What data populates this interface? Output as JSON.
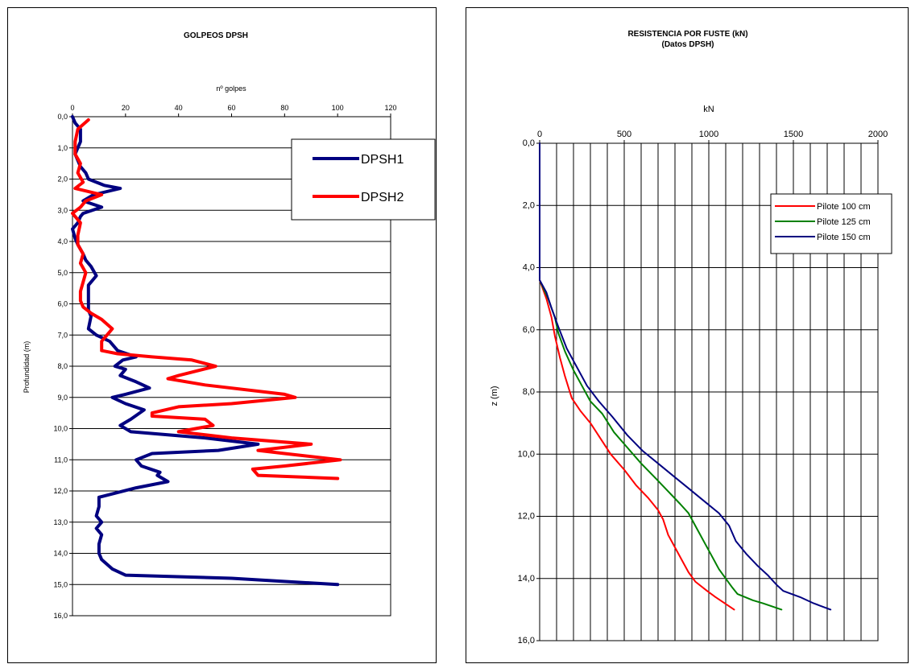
{
  "chart_data": [
    {
      "type": "line",
      "title": "GOLPEOS DPSH",
      "xlabel": "nº golpes",
      "ylabel": "Profundidad (m)",
      "xlim": [
        0,
        120
      ],
      "ylim": [
        0,
        16
      ],
      "y_inverted": true,
      "x_axis_position": "top",
      "grid": "horizontal",
      "legend": "top-right",
      "x_ticks": [
        "0",
        "20",
        "40",
        "60",
        "80",
        "100",
        "120"
      ],
      "y_ticks": [
        "0,0",
        "1,0",
        "2,0",
        "3,0",
        "4,0",
        "5,0",
        "6,0",
        "7,0",
        "8,0",
        "9,0",
        "10,0",
        "11,0",
        "12,0",
        "13,0",
        "14,0",
        "15,0",
        "16,0"
      ],
      "series": [
        {
          "name": "DPSH1",
          "color": "#000080",
          "points": [
            [
              0,
              0
            ],
            [
              1,
              0.2
            ],
            [
              3,
              0.4
            ],
            [
              3,
              0.8
            ],
            [
              1,
              1.2
            ],
            [
              3,
              1.6
            ],
            [
              5,
              1.8
            ],
            [
              6,
              2.0
            ],
            [
              12,
              2.2
            ],
            [
              18,
              2.3
            ],
            [
              8,
              2.5
            ],
            [
              4,
              2.7
            ],
            [
              11,
              2.9
            ],
            [
              4,
              3.1
            ],
            [
              3,
              3.2
            ],
            [
              2,
              3.4
            ],
            [
              0,
              3.6
            ],
            [
              1,
              3.9
            ],
            [
              2,
              4.1
            ],
            [
              4,
              4.4
            ],
            [
              5,
              4.6
            ],
            [
              7,
              4.8
            ],
            [
              9,
              5.1
            ],
            [
              6,
              5.4
            ],
            [
              6,
              5.8
            ],
            [
              6,
              6.2
            ],
            [
              7,
              6.4
            ],
            [
              6,
              6.8
            ],
            [
              9,
              7.0
            ],
            [
              14,
              7.2
            ],
            [
              17,
              7.5
            ],
            [
              24,
              7.7
            ],
            [
              19,
              7.8
            ],
            [
              16,
              8.0
            ],
            [
              20,
              8.1
            ],
            [
              18,
              8.3
            ],
            [
              24,
              8.5
            ],
            [
              29,
              8.7
            ],
            [
              20,
              8.9
            ],
            [
              15,
              9.0
            ],
            [
              20,
              9.2
            ],
            [
              27,
              9.4
            ],
            [
              22,
              9.7
            ],
            [
              18,
              9.9
            ],
            [
              22,
              10.1
            ],
            [
              50,
              10.3
            ],
            [
              70,
              10.5
            ],
            [
              55,
              10.7
            ],
            [
              30,
              10.8
            ],
            [
              24,
              11.0
            ],
            [
              26,
              11.2
            ],
            [
              33,
              11.4
            ],
            [
              32,
              11.5
            ],
            [
              36,
              11.7
            ],
            [
              24,
              11.9
            ],
            [
              10,
              12.2
            ],
            [
              10,
              12.5
            ],
            [
              9,
              12.8
            ],
            [
              11,
              13.0
            ],
            [
              9,
              13.2
            ],
            [
              11,
              13.4
            ],
            [
              10,
              13.7
            ],
            [
              10,
              14.0
            ],
            [
              11,
              14.2
            ],
            [
              15,
              14.5
            ],
            [
              20,
              14.7
            ],
            [
              60,
              14.8
            ],
            [
              100,
              15.0
            ]
          ]
        },
        {
          "name": "DPSH2",
          "color": "#ff0000",
          "points": [
            [
              6,
              0.1
            ],
            [
              2,
              0.4
            ],
            [
              1,
              0.8
            ],
            [
              1,
              1.2
            ],
            [
              3,
              1.5
            ],
            [
              2,
              1.8
            ],
            [
              4,
              2.1
            ],
            [
              1,
              2.3
            ],
            [
              11,
              2.5
            ],
            [
              5,
              2.7
            ],
            [
              3,
              2.9
            ],
            [
              0,
              3.1
            ],
            [
              3,
              3.4
            ],
            [
              2,
              3.8
            ],
            [
              2,
              4.1
            ],
            [
              4,
              4.4
            ],
            [
              3,
              4.7
            ],
            [
              5,
              5.0
            ],
            [
              4,
              5.3
            ],
            [
              3,
              5.6
            ],
            [
              3,
              5.9
            ],
            [
              4,
              6.1
            ],
            [
              7,
              6.3
            ],
            [
              11,
              6.5
            ],
            [
              15,
              6.8
            ],
            [
              13,
              7.0
            ],
            [
              11,
              7.2
            ],
            [
              11,
              7.5
            ],
            [
              17,
              7.6
            ],
            [
              30,
              7.7
            ],
            [
              45,
              7.8
            ],
            [
              54,
              8.0
            ],
            [
              40,
              8.3
            ],
            [
              36,
              8.4
            ],
            [
              50,
              8.6
            ],
            [
              80,
              8.9
            ],
            [
              84,
              9.0
            ],
            [
              60,
              9.2
            ],
            [
              40,
              9.3
            ],
            [
              30,
              9.5
            ],
            [
              30,
              9.6
            ],
            [
              50,
              9.7
            ],
            [
              53,
              9.9
            ],
            [
              40,
              10.1
            ],
            [
              60,
              10.3
            ],
            [
              90,
              10.5
            ],
            [
              70,
              10.7
            ],
            [
              80,
              10.8
            ],
            [
              101,
              11.0
            ],
            [
              80,
              11.2
            ],
            [
              68,
              11.3
            ],
            [
              70,
              11.5
            ],
            [
              100,
              11.6
            ]
          ]
        }
      ]
    },
    {
      "type": "line",
      "title": "RESISTENCIA POR FUSTE (kN)",
      "subtitle": "(Datos DPSH)",
      "xlabel": "kN",
      "ylabel": "z (m)",
      "xlim": [
        0,
        2000
      ],
      "ylim": [
        0,
        16
      ],
      "y_inverted": true,
      "x_axis_position": "top",
      "grid": "both",
      "legend": "top-right",
      "x_ticks": [
        "0",
        "500",
        "1000",
        "1500",
        "2000"
      ],
      "y_ticks": [
        "0,0",
        "2,0",
        "4,0",
        "6,0",
        "8,0",
        "10,0",
        "12,0",
        "14,0",
        "16,0"
      ],
      "series": [
        {
          "name": "Pilote 100 cm",
          "color": "#ff0000",
          "points": [
            [
              0,
              0
            ],
            [
              0,
              4.4
            ],
            [
              40,
              5.0
            ],
            [
              70,
              5.6
            ],
            [
              90,
              6.2
            ],
            [
              120,
              6.9
            ],
            [
              150,
              7.5
            ],
            [
              190,
              8.2
            ],
            [
              240,
              8.6
            ],
            [
              300,
              9.0
            ],
            [
              360,
              9.5
            ],
            [
              420,
              10.0
            ],
            [
              500,
              10.5
            ],
            [
              570,
              11.0
            ],
            [
              640,
              11.4
            ],
            [
              700,
              11.8
            ],
            [
              730,
              12.1
            ],
            [
              760,
              12.6
            ],
            [
              800,
              13.0
            ],
            [
              840,
              13.4
            ],
            [
              880,
              13.8
            ],
            [
              920,
              14.1
            ],
            [
              990,
              14.4
            ],
            [
              1040,
              14.6
            ],
            [
              1150,
              15.0
            ]
          ]
        },
        {
          "name": "Pilote 125 cm",
          "color": "#008000",
          "points": [
            [
              0,
              0
            ],
            [
              0,
              4.4
            ],
            [
              50,
              5.0
            ],
            [
              90,
              5.6
            ],
            [
              110,
              6.1
            ],
            [
              150,
              6.7
            ],
            [
              200,
              7.3
            ],
            [
              250,
              7.8
            ],
            [
              300,
              8.3
            ],
            [
              370,
              8.7
            ],
            [
              440,
              9.3
            ],
            [
              520,
              9.8
            ],
            [
              600,
              10.3
            ],
            [
              690,
              10.8
            ],
            [
              760,
              11.2
            ],
            [
              830,
              11.6
            ],
            [
              880,
              11.9
            ],
            [
              930,
              12.4
            ],
            [
              980,
              12.9
            ],
            [
              1020,
              13.3
            ],
            [
              1060,
              13.7
            ],
            [
              1100,
              14.0
            ],
            [
              1140,
              14.3
            ],
            [
              1170,
              14.5
            ],
            [
              1260,
              14.7
            ],
            [
              1320,
              14.8
            ],
            [
              1430,
              15.0
            ]
          ]
        },
        {
          "name": "Pilote 150 cm",
          "color": "#000080",
          "points": [
            [
              0,
              0
            ],
            [
              0,
              4.4
            ],
            [
              40,
              4.8
            ],
            [
              70,
              5.3
            ],
            [
              110,
              5.9
            ],
            [
              160,
              6.6
            ],
            [
              220,
              7.2
            ],
            [
              280,
              7.8
            ],
            [
              350,
              8.3
            ],
            [
              430,
              8.8
            ],
            [
              520,
              9.4
            ],
            [
              610,
              9.9
            ],
            [
              700,
              10.3
            ],
            [
              790,
              10.7
            ],
            [
              880,
              11.1
            ],
            [
              970,
              11.5
            ],
            [
              1060,
              11.9
            ],
            [
              1120,
              12.3
            ],
            [
              1160,
              12.8
            ],
            [
              1220,
              13.2
            ],
            [
              1290,
              13.6
            ],
            [
              1350,
              13.9
            ],
            [
              1400,
              14.2
            ],
            [
              1440,
              14.4
            ],
            [
              1540,
              14.6
            ],
            [
              1620,
              14.8
            ],
            [
              1720,
              15.0
            ]
          ]
        }
      ]
    }
  ]
}
